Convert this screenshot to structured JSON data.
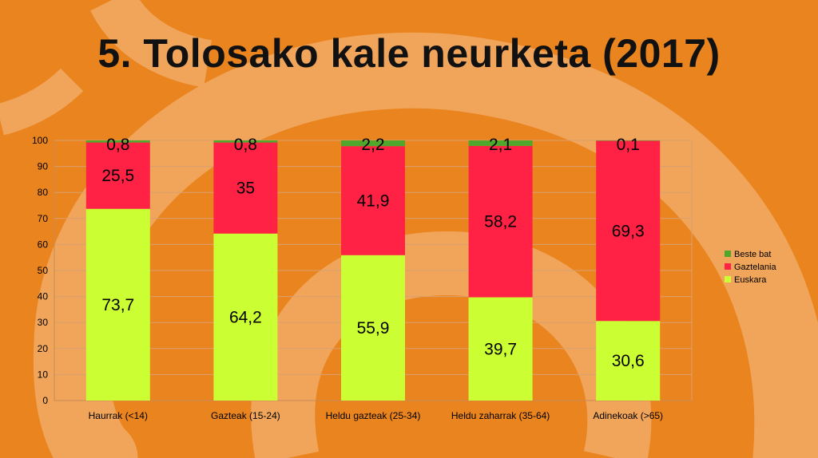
{
  "slide": {
    "title": "5. Tolosako kale neurketa (2017)"
  },
  "colors": {
    "background": "#ea841f",
    "swirl": "#f0a55a"
  },
  "chart_data": {
    "type": "bar",
    "stacked": true,
    "categories": [
      "Haurrak (<14)",
      "Gazteak (15-24)",
      "Heldu gazteak (25-34)",
      "Heldu zaharrak (35-64)",
      "Adinekoak (>65)"
    ],
    "series": [
      {
        "name": "Euskara",
        "color": "#ccff33",
        "values": [
          73.7,
          64.2,
          55.9,
          39.7,
          30.6
        ]
      },
      {
        "name": "Gaztelania",
        "color": "#ff2244",
        "values": [
          25.5,
          35,
          41.9,
          58.2,
          69.3
        ]
      },
      {
        "name": "Beste bat",
        "color": "#4fa82b",
        "values": [
          0.8,
          0.8,
          2.2,
          2.1,
          0.1
        ]
      }
    ],
    "data_labels": [
      [
        "73,7",
        "64,2",
        "55,9",
        "39,7",
        "30,6"
      ],
      [
        "25,5",
        "35",
        "41,9",
        "58,2",
        "69,3"
      ],
      [
        "0,8",
        "0,8",
        "2,2",
        "2,1",
        "0,1"
      ]
    ],
    "yticks": [
      "0",
      "10",
      "20",
      "30",
      "40",
      "50",
      "60",
      "70",
      "80",
      "90",
      "100"
    ],
    "ylim": [
      0,
      100
    ],
    "grid": true,
    "legend": "right"
  }
}
